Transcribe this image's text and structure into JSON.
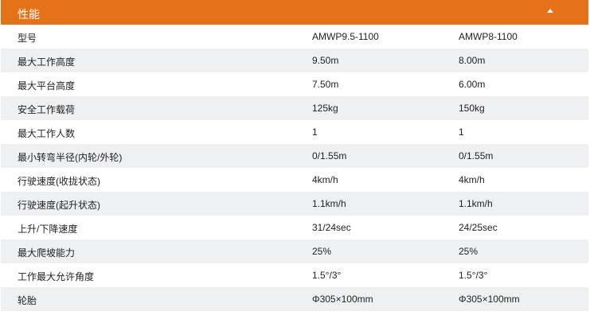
{
  "section": {
    "title": "性能",
    "toggle_icon": "triangle-up-icon",
    "accent": "#e57118"
  },
  "rows": [
    [
      "型号",
      "AMWP9.5-1100",
      "AMWP8-1100"
    ],
    [
      "最大工作高度",
      "9.50m",
      "8.00m"
    ],
    [
      "最大平台高度",
      "7.50m",
      "6.00m"
    ],
    [
      "安全工作载荷",
      "125kg",
      "150kg"
    ],
    [
      "最大工作人数",
      "1",
      "1"
    ],
    [
      "最小转弯半径(内轮/外轮)",
      "0/1.55m",
      "0/1.55m"
    ],
    [
      "行驶速度(收拢状态)",
      "4km/h",
      "4km/h"
    ],
    [
      "行驶速度(起升状态)",
      "1.1km/h",
      "1.1km/h"
    ],
    [
      "上升/下降速度",
      "31/24sec",
      "24/25sec"
    ],
    [
      "最大爬坡能力",
      "25%",
      "25%"
    ],
    [
      "工作最大允许角度",
      "1.5°/3°",
      "1.5°/3°"
    ],
    [
      "轮胎",
      "Φ305×100mm",
      "Φ305×100mm"
    ]
  ]
}
